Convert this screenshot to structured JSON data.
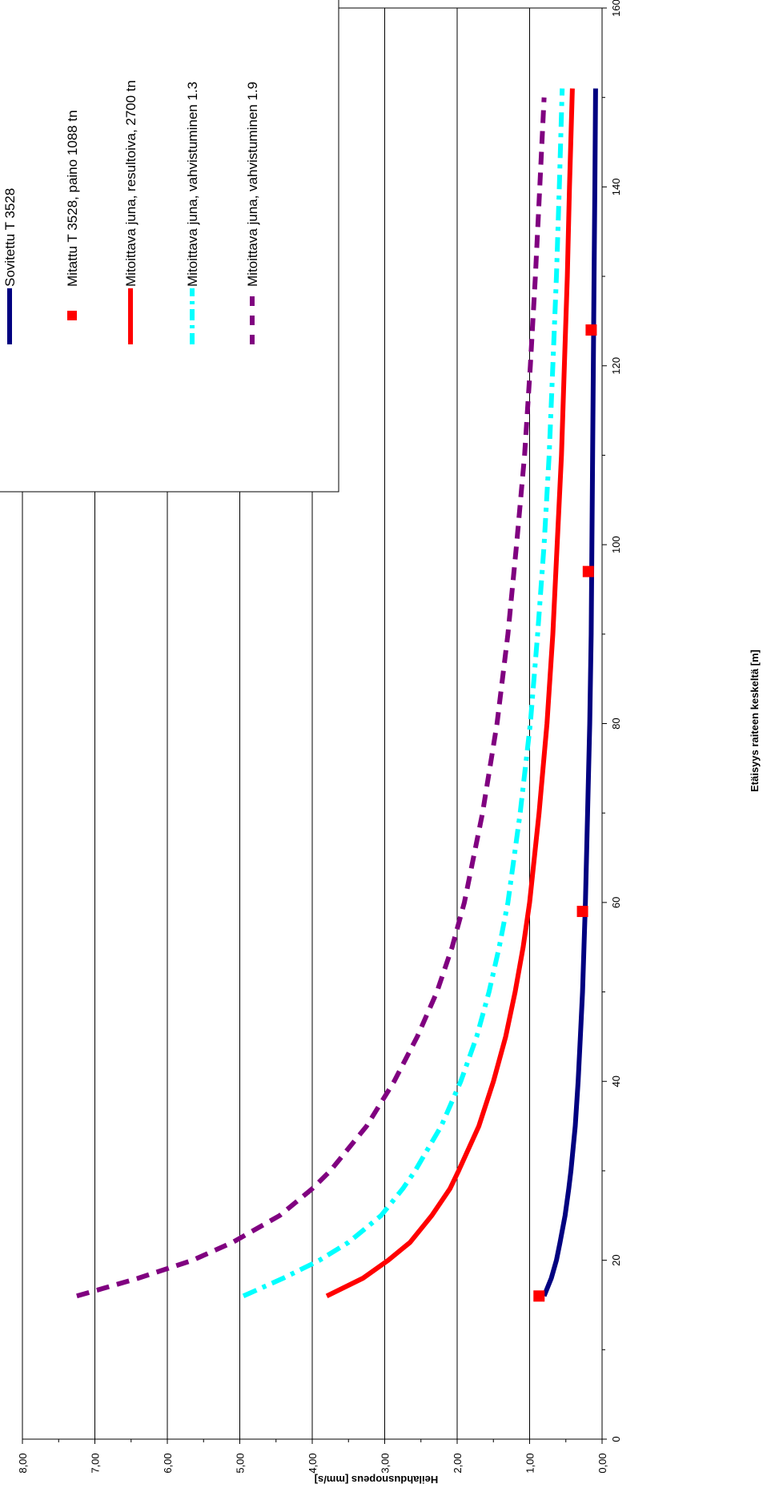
{
  "chart_data": {
    "type": "line",
    "orientation": "rotated-90-counterclockwise",
    "xlabel": "Etäisyys raiteen keskeltä [m]",
    "ylabel": "Heilahdusnopeus [mm/s]",
    "xlim": [
      0,
      160
    ],
    "ylim": [
      0,
      8
    ],
    "x_ticks": [
      "0",
      "20",
      "40",
      "60",
      "80",
      "100",
      "120",
      "140",
      "160"
    ],
    "y_ticks": [
      "0,00",
      "1,00",
      "2,00",
      "3,00",
      "4,00",
      "5,00",
      "6,00",
      "7,00",
      "8,00"
    ],
    "grid": "horizontal major gridlines",
    "legend_position": "upper-left",
    "series": [
      {
        "name": "Sovitettu T 3528",
        "style": "solid",
        "color": "#000080",
        "x": [
          16,
          18,
          20,
          22,
          25,
          28,
          30,
          35,
          40,
          45,
          50,
          55,
          60,
          70,
          80,
          90,
          100,
          110,
          120,
          130,
          140,
          151
        ],
        "y": [
          0.8,
          0.7,
          0.63,
          0.58,
          0.51,
          0.46,
          0.43,
          0.37,
          0.33,
          0.3,
          0.27,
          0.25,
          0.23,
          0.2,
          0.17,
          0.15,
          0.14,
          0.13,
          0.12,
          0.11,
          0.1,
          0.09
        ]
      },
      {
        "name": "Mitattu T 3528, paino 1088 tn",
        "style": "markers",
        "color": "#ff0000",
        "x": [
          16,
          59,
          97,
          124
        ],
        "y": [
          0.87,
          0.27,
          0.19,
          0.15
        ]
      },
      {
        "name": "Mitoittava juna, resultoiva, 2700 tn",
        "style": "solid",
        "color": "#ff0000",
        "x": [
          16,
          18,
          20,
          22,
          25,
          28,
          30,
          35,
          40,
          45,
          50,
          55,
          60,
          70,
          80,
          90,
          100,
          110,
          120,
          130,
          140,
          151
        ],
        "y": [
          3.8,
          3.3,
          2.95,
          2.65,
          2.35,
          2.1,
          1.98,
          1.7,
          1.5,
          1.33,
          1.2,
          1.09,
          1.0,
          0.87,
          0.76,
          0.68,
          0.62,
          0.56,
          0.52,
          0.48,
          0.45,
          0.41
        ]
      },
      {
        "name": "Mitoittava juna, vahvistuminen 1.3",
        "style": "dash-dot",
        "color": "#00ffff",
        "x": [
          16,
          18,
          20,
          22,
          25,
          28,
          30,
          35,
          40,
          45,
          50,
          55,
          60,
          70,
          80,
          90,
          100,
          110,
          120,
          130,
          140,
          151
        ],
        "y": [
          4.95,
          4.4,
          3.9,
          3.5,
          3.05,
          2.75,
          2.58,
          2.22,
          1.95,
          1.73,
          1.56,
          1.42,
          1.3,
          1.13,
          0.99,
          0.89,
          0.8,
          0.73,
          0.68,
          0.63,
          0.59,
          0.55
        ]
      },
      {
        "name": "Mitoittava juna, vahvistuminen 1.9",
        "style": "dashed",
        "color": "#800080",
        "x": [
          16,
          18,
          20,
          22,
          25,
          28,
          30,
          35,
          40,
          45,
          50,
          55,
          60,
          70,
          80,
          90,
          100,
          110,
          120,
          130,
          140,
          150
        ],
        "y": [
          7.25,
          6.4,
          5.65,
          5.1,
          4.45,
          4.0,
          3.75,
          3.25,
          2.87,
          2.55,
          2.28,
          2.07,
          1.9,
          1.65,
          1.45,
          1.3,
          1.18,
          1.07,
          0.99,
          0.92,
          0.86,
          0.8
        ]
      }
    ]
  }
}
